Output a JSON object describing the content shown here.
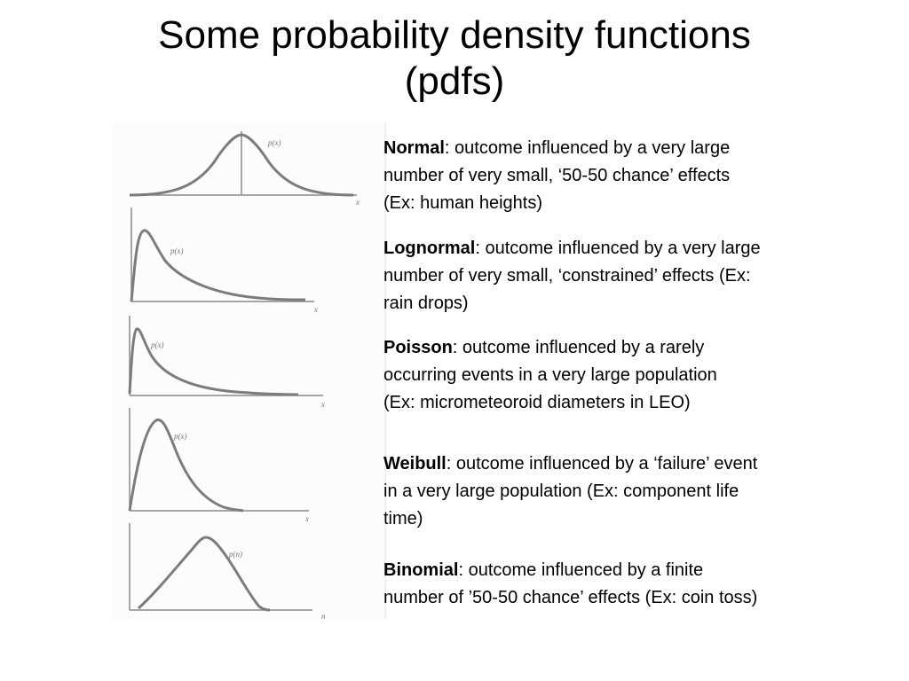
{
  "title": {
    "line1": "Some probability density functions",
    "line2": "(pdfs)"
  },
  "figures": {
    "normal": {
      "curve_label": "p(x)",
      "axis_label": "x"
    },
    "lognormal": {
      "curve_label": "p(x)",
      "axis_label": "x"
    },
    "poisson": {
      "curve_label": "p(x)",
      "axis_label": "x"
    },
    "weibull": {
      "curve_label": "p(x)",
      "axis_label": "x"
    },
    "binomial": {
      "curve_label": "p(n)",
      "axis_label": "n"
    }
  },
  "distributions": [
    {
      "name": "Normal",
      "lines": [
        ": outcome influenced by a very large",
        "number of very small, ‘50-50 chance’ effects",
        "(Ex: human heights)"
      ]
    },
    {
      "name": "Lognormal",
      "lines": [
        ": outcome influenced by a very large",
        "number of very small, ‘constrained’ effects (Ex:",
        "rain drops)"
      ]
    },
    {
      "name": "Poisson",
      "lines": [
        ": outcome influenced by a rarely",
        "occurring events in a very large population",
        "(Ex: micrometeoroid diameters in LEO)"
      ]
    },
    {
      "name": "Weibull",
      "lines": [
        ": outcome influenced by a ‘failure’ event",
        "in a very large population (Ex: component life",
        "time)"
      ]
    },
    {
      "name": "Binomial",
      "lines": [
        ": outcome influenced by a finite",
        "number of ’50-50 chance’ effects (Ex: coin toss)"
      ]
    }
  ]
}
